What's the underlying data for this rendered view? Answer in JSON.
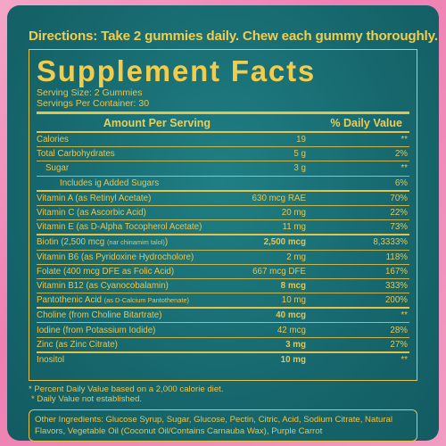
{
  "directions": "Directions: Take 2 gummies daily. Chew each gummy thoroughly.",
  "title": "Supplement Facts",
  "serving_size": "Serving Size: 2 Gummies",
  "servings_per_container": "Servings Per Container: 30",
  "header": {
    "amount": "Amount Per Serving",
    "dv": "% Daily Value"
  },
  "rows": [
    {
      "name": "Calories",
      "name_small": "",
      "amount": "19",
      "dv": "**"
    },
    {
      "name": "Total Carbohydrates",
      "name_small": "",
      "amount": "5 g",
      "dv": "2%"
    },
    {
      "name": "Sugar",
      "name_small": "",
      "amount": "3 g",
      "dv": "**"
    },
    {
      "name": "Includes ig Added Sugars",
      "name_small": "",
      "amount": "",
      "dv": "6%"
    },
    {
      "name": "Vitamin A (as Retinyl Acetate)",
      "name_small": "",
      "amount": "630 mcg RAE",
      "dv": "70%"
    },
    {
      "name": "Vitamin C (as Ascorbic Acid)",
      "name_small": "",
      "amount": "20 mg",
      "dv": "22%"
    },
    {
      "name": "Vitamin E (as D-Alpha Tocopherol Acetate)",
      "name_small": "",
      "amount": "11 mg",
      "dv": "73%"
    },
    {
      "name": "Biotin (2,500 mcg ",
      "name_small": "(nar chinamim talol)",
      "amount": "2,500 mcg",
      "dv": "8,3333%"
    },
    {
      "name": "Vitamin B6 (as Pyridoxine Hydrocholore)",
      "name_small": "",
      "amount": "2 mg",
      "dv": "118%"
    },
    {
      "name": "Folate (400 mcg DFE as Folic Acid)",
      "name_small": "",
      "amount": "667 mcg DFE",
      "dv": "167%"
    },
    {
      "name": "Vitamin B12 (as Cyanocobalamin)",
      "name_small": "",
      "amount": "8 mcg",
      "dv": "333%"
    },
    {
      "name": "Pantothenic Acid ",
      "name_small": "(as D-Calcium Pantothenate)",
      "amount": "10 mg",
      "dv": "200%"
    },
    {
      "name": "Choline (from Choline Bitartrate)",
      "name_small": "",
      "amount": "40 mcg",
      "dv": "**"
    },
    {
      "name": "Iodine (from Potassium Iodide)",
      "name_small": "",
      "amount": "42 mcg",
      "dv": "28%"
    },
    {
      "name": "Zinc (as Zinc Citrate)",
      "name_small": "",
      "amount": "3 mg",
      "dv": "27%"
    },
    {
      "name": "Inositol",
      "name_small": "",
      "amount": "10 mg",
      "dv": "**"
    }
  ],
  "footnote1": "* Percent Daily Value based on a 2,000 calorie diet.",
  "footnote2": "* Daily Value not established.",
  "ingredients": "Other Ingredients: Glucose Syrup, Sugar, Glucose, Pectin, Citric, Acid, Sodium Citrate, Natural Flavors, Vegetable Oil (Coconut Oil/Contains Carnauba Wax), Purple Carrot"
}
